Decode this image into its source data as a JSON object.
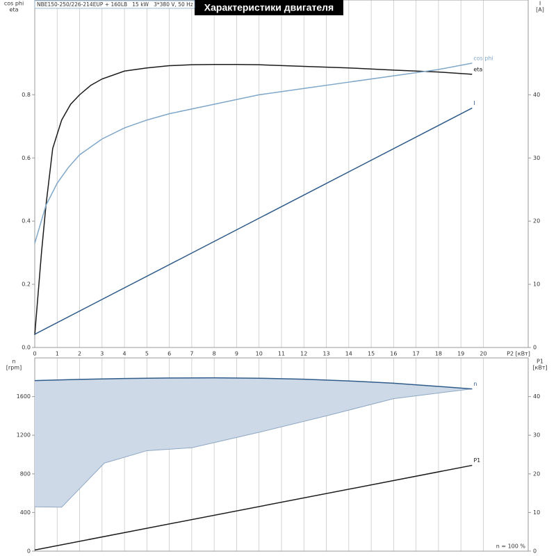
{
  "header": {
    "title": "Характеристики двигателя",
    "subtitle": "NBE150-250/226-214EUP + 160LB   15 kW   3*380 V, 50 Hz"
  },
  "chart_data": [
    {
      "type": "line",
      "xlabel": "P2 [кВт]",
      "ylabel": [
        "cos phi",
        "eta"
      ],
      "y2label": [
        "I",
        "[A]"
      ],
      "xlim": [
        0,
        22
      ],
      "xticks": [
        0,
        1,
        2,
        3,
        4,
        5,
        6,
        7,
        8,
        9,
        10,
        11,
        12,
        13,
        14,
        15,
        16,
        17,
        18,
        19,
        20
      ],
      "ylim": [
        0,
        1.1
      ],
      "yticks": [
        {
          "value": 0,
          "label": "0.0"
        },
        0.2,
        0.4,
        0.6,
        0.8
      ],
      "y2lim": [
        0,
        55
      ],
      "y2ticks": [
        0,
        10,
        20,
        30,
        40
      ],
      "grid": "x",
      "series": [
        {
          "name": "eta",
          "color": "#1a1a1a",
          "x": [
            0,
            0.3,
            0.5,
            0.8,
            1.2,
            1.6,
            2,
            2.5,
            3,
            4,
            5,
            6,
            7,
            8,
            9,
            10,
            12,
            14,
            16,
            18,
            19.5
          ],
          "values": [
            0.04,
            0.3,
            0.45,
            0.63,
            0.72,
            0.77,
            0.8,
            0.83,
            0.85,
            0.875,
            0.885,
            0.892,
            0.895,
            0.896,
            0.896,
            0.895,
            0.89,
            0.885,
            0.878,
            0.872,
            0.865
          ]
        },
        {
          "name": "cos phi",
          "color": "#7fa7c9",
          "x": [
            0,
            0.5,
            1,
            1.5,
            2,
            3,
            4,
            5,
            6,
            8,
            10,
            12,
            14,
            16,
            18,
            19.5
          ],
          "values": [
            0.33,
            0.45,
            0.52,
            0.57,
            0.61,
            0.66,
            0.695,
            0.72,
            0.74,
            0.77,
            0.8,
            0.82,
            0.84,
            0.86,
            0.88,
            0.9
          ]
        },
        {
          "name": "I",
          "color": "#2e5b8a",
          "axis": "y2",
          "x": [
            0,
            19.5
          ],
          "values": [
            2.1,
            37.9
          ]
        }
      ]
    },
    {
      "type": "area",
      "annotation": "n = 100 %",
      "ylabel": [
        "n",
        "[rpm]"
      ],
      "y2label": [
        "P1",
        "[кВт]"
      ],
      "xlim": [
        0,
        22
      ],
      "ylim": [
        0,
        2000
      ],
      "yticks": [
        0,
        400,
        800,
        1200,
        1600
      ],
      "y2lim": [
        0,
        50
      ],
      "y2ticks": [
        0,
        10,
        20,
        30,
        40
      ],
      "grid": "x",
      "series": [
        {
          "name": "n",
          "color": "#2e5b8a",
          "fill": "#cdd9e6",
          "x": [
            0,
            2,
            4,
            6,
            8,
            10,
            12,
            14,
            16,
            18,
            19.5
          ],
          "values": [
            1765,
            1778,
            1787,
            1792,
            1794,
            1790,
            1780,
            1762,
            1738,
            1705,
            1679
          ],
          "band": {
            "x": [
              0,
              1.2,
              3.1,
              5,
              7,
              10,
              13,
              16,
              19.5
            ],
            "lower": [
              459,
              455,
              911,
              1040,
              1070,
              1230,
              1400,
              1578,
              1680
            ]
          }
        },
        {
          "name": "P1",
          "color": "#1a1a1a",
          "axis": "y2",
          "x": [
            0,
            19.5
          ],
          "values": [
            0.3,
            22.2
          ]
        }
      ]
    }
  ]
}
